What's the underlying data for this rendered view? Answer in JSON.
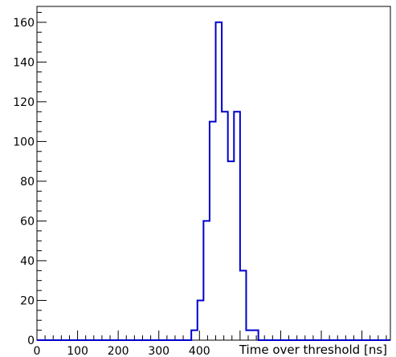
{
  "chart_data": {
    "type": "histogram",
    "title": "",
    "xlabel": "Time over threshold [ns]",
    "ylabel": "",
    "xlim": [
      0,
      870
    ],
    "ylim": [
      0,
      168
    ],
    "x_ticks": [
      0,
      100,
      200,
      300,
      400
    ],
    "y_ticks": [
      0,
      20,
      40,
      60,
      80,
      100,
      120,
      140,
      160
    ],
    "y_minor_step": 5,
    "x_minor_step": 20,
    "line_color": "#0000cc",
    "grid": false,
    "bins": [
      {
        "x0": 0,
        "x1": 380,
        "y": 0
      },
      {
        "x0": 380,
        "x1": 395,
        "y": 5
      },
      {
        "x0": 395,
        "x1": 410,
        "y": 20
      },
      {
        "x0": 410,
        "x1": 425,
        "y": 60
      },
      {
        "x0": 425,
        "x1": 440,
        "y": 110
      },
      {
        "x0": 440,
        "x1": 455,
        "y": 160
      },
      {
        "x0": 455,
        "x1": 470,
        "y": 115
      },
      {
        "x0": 470,
        "x1": 485,
        "y": 90
      },
      {
        "x0": 485,
        "x1": 500,
        "y": 115
      },
      {
        "x0": 500,
        "x1": 515,
        "y": 35
      },
      {
        "x0": 515,
        "x1": 545,
        "y": 5
      },
      {
        "x0": 545,
        "x1": 870,
        "y": 0
      }
    ]
  }
}
